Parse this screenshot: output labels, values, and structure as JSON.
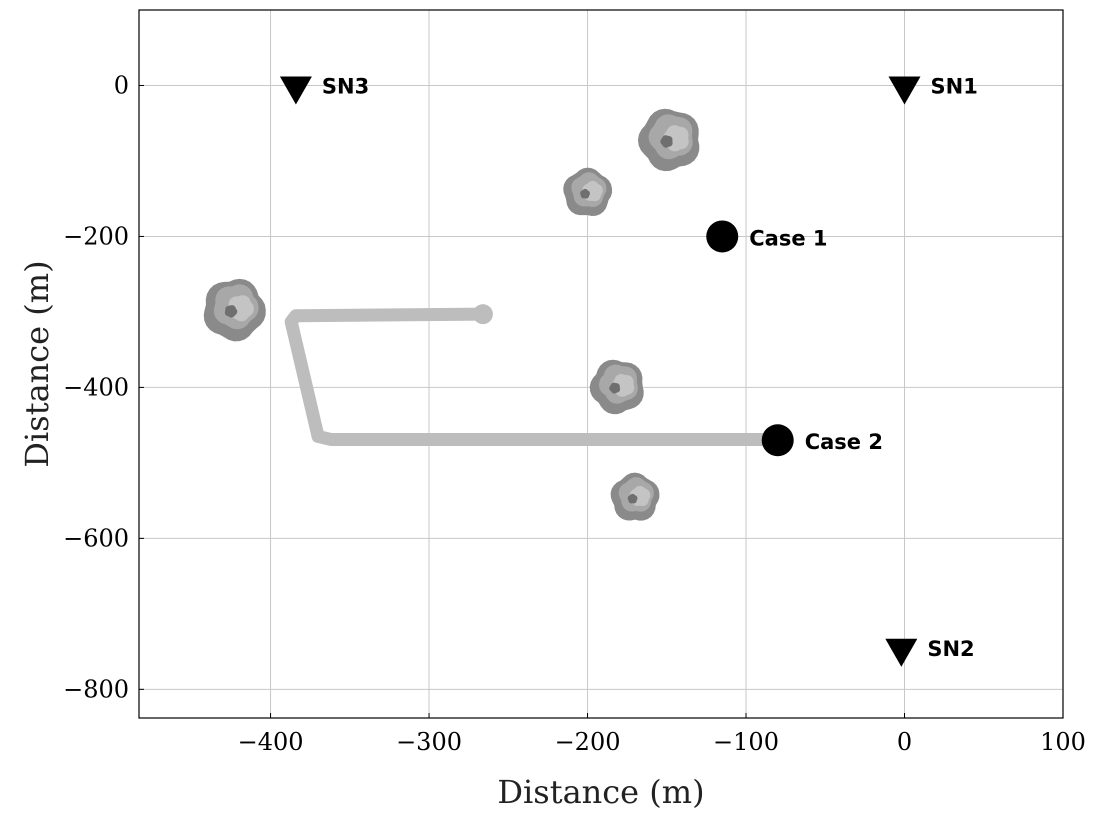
{
  "chart_data": {
    "type": "scatter",
    "title": "",
    "xlabel": "Distance (m)",
    "ylabel": "Distance (m)",
    "xlim": [
      -483,
      100
    ],
    "ylim": [
      -838,
      100
    ],
    "grid": true,
    "xticks": [
      -400,
      -300,
      -200,
      -100,
      0,
      100
    ],
    "xtick_labels": [
      "−400",
      "−300",
      "−200",
      "−100",
      "0",
      "100"
    ],
    "yticks": [
      0,
      -200,
      -400,
      -600,
      -800
    ],
    "ytick_labels": [
      "0",
      "−200",
      "−400",
      "−600",
      "−800"
    ],
    "sensor_nodes": [
      {
        "label": "SN1",
        "x": 0,
        "y": 0
      },
      {
        "label": "SN2",
        "x": -2,
        "y": -745
      },
      {
        "label": "SN3",
        "x": -384,
        "y": 0
      }
    ],
    "cases": [
      {
        "label": "Case 1",
        "x": -115,
        "y": -200
      },
      {
        "label": "Case 2",
        "x": -80,
        "y": -470
      }
    ],
    "trees": [
      {
        "x": -148,
        "y": -72,
        "size": "large"
      },
      {
        "x": -200,
        "y": -142,
        "size": "small"
      },
      {
        "x": -423,
        "y": -297,
        "size": "large"
      },
      {
        "x": -181,
        "y": -399,
        "size": "medium"
      },
      {
        "x": -170,
        "y": -546,
        "size": "small"
      }
    ],
    "path": {
      "color": "#bdbdbd",
      "points": [
        [
          -266,
          -303
        ],
        [
          -384,
          -305
        ],
        [
          -387,
          -313
        ],
        [
          -370,
          -465
        ],
        [
          -362,
          -469
        ],
        [
          -80,
          -469
        ]
      ]
    },
    "colors": {
      "grid": "#c8c8c8",
      "marker": "#000000",
      "tree": [
        "#8a8a8a",
        "#a8a8a8",
        "#c4c4c4",
        "#6f6f6f"
      ]
    }
  }
}
